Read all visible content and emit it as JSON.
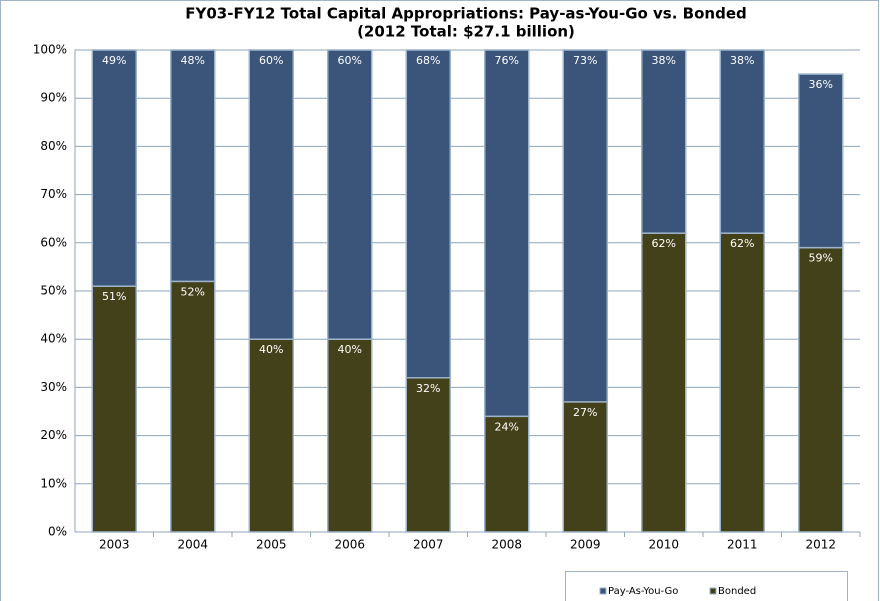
{
  "chart_data": {
    "type": "stacked_bar",
    "title": "FY03-FY12 Total Capital Appropriations: Pay-as-You-Go vs. Bonded",
    "subtitle": "(2012 Total: $27.1 billion)",
    "categories": [
      "2003",
      "2004",
      "2005",
      "2006",
      "2007",
      "2008",
      "2009",
      "2010",
      "2011",
      "2012"
    ],
    "series": [
      {
        "name": "Pay-As-You-Go",
        "color": "#3b5479",
        "values": [
          49,
          48,
          60,
          60,
          68,
          76,
          73,
          38,
          38,
          36
        ],
        "value_labels": [
          "49%",
          "48%",
          "60%",
          "60%",
          "68%",
          "76%",
          "73%",
          "38%",
          "38%",
          "36%"
        ]
      },
      {
        "name": "Bonded",
        "color": "#434119",
        "values": [
          51,
          52,
          40,
          40,
          32,
          24,
          27,
          62,
          62,
          59
        ],
        "value_labels": [
          "51%",
          "52%",
          "40%",
          "40%",
          "32%",
          "24%",
          "27%",
          "62%",
          "62%",
          "59%"
        ]
      }
    ],
    "ylim": [
      0,
      100
    ],
    "yticks": [
      {
        "value": 0,
        "label": "0%"
      },
      {
        "value": 10,
        "label": "10%"
      },
      {
        "value": 20,
        "label": "20%"
      },
      {
        "value": 30,
        "label": "30%"
      },
      {
        "value": 40,
        "label": "40%"
      },
      {
        "value": 50,
        "label": "50%"
      },
      {
        "value": 60,
        "label": "60%"
      },
      {
        "value": 70,
        "label": "70%"
      },
      {
        "value": 80,
        "label": "80%"
      },
      {
        "value": 90,
        "label": "90%"
      },
      {
        "value": 100,
        "label": "100%"
      }
    ],
    "grid": true,
    "legend": "bottom-right"
  }
}
